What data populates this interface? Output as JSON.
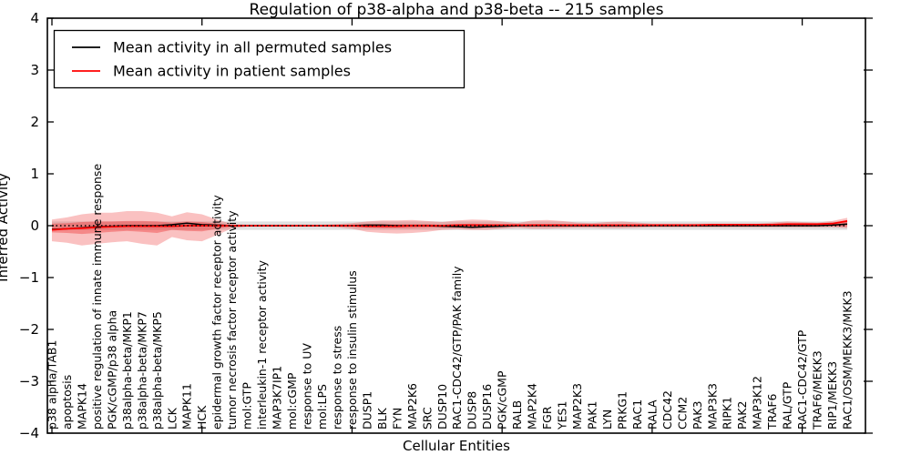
{
  "chart_data": {
    "type": "line",
    "title": "Regulation of p38-alpha and p38-beta -- 215 samples",
    "xlabel": "Cellular Entities",
    "ylabel": "Inferred Activity",
    "ylim": [
      -4,
      4
    ],
    "grid": false,
    "legend_position": "upper left",
    "zero_line": {
      "style": "dotted",
      "color": "#000000",
      "y": 0
    },
    "ytick_values": [
      4,
      3,
      2,
      1,
      0,
      -1,
      -2,
      -3,
      -4
    ],
    "ytick_labels": [
      "4",
      "3",
      "2",
      "1",
      "0",
      "−1",
      "−2",
      "−3",
      "−4"
    ],
    "xtick_positions": [
      0,
      10,
      20,
      30,
      40,
      50
    ],
    "categories": [
      "p38 alpha/TAB1",
      "apoptosis",
      "MAPK14",
      "positive regulation of innate immune response",
      "PGK/cGMP/p38 alpha",
      "p38alpha-beta/MKP1",
      "p38alpha-beta/MKP7",
      "p38alpha-beta/MKP5",
      "LCK",
      "MAPK11",
      "HCK",
      "epidermal growth factor receptor activity",
      "tumor necrosis factor receptor activity",
      "mol:GTP",
      "interleukin-1 receptor activity",
      "MAP3K7IP1",
      "mol:cGMP",
      "response to UV",
      "mol:LPS",
      "response to stress",
      "response to insulin stimulus",
      "DUSP1",
      "BLK",
      "FYN",
      "MAP2K6",
      "SRC",
      "DUSP10",
      "RAC1-CDC42/GTP/PAK family",
      "DUSP8",
      "DUSP16",
      "PGK/cGMP",
      "RALB",
      "MAP2K4",
      "FGR",
      "YES1",
      "MAP2K3",
      "PAK1",
      "LYN",
      "PRKG1",
      "RAC1",
      "RALA",
      "CDC42",
      "CCM2",
      "PAK3",
      "MAP3K3",
      "RIPK1",
      "PAK2",
      "MAP3K12",
      "TRAF6",
      "RAL/GTP",
      "RAC1-CDC42/GTP",
      "TRAF6/MEKK3",
      "RIP1/MEKK3",
      "RAC1/OSM/MEKK3/MKK3"
    ],
    "series": [
      {
        "name": "Mean activity in all permuted samples",
        "color": "#000000",
        "values": [
          -0.07,
          -0.06,
          -0.04,
          -0.02,
          -0.01,
          0,
          0,
          0,
          0.02,
          0.05,
          0.02,
          0.01,
          0,
          0,
          0,
          0,
          0,
          0,
          0,
          0,
          0,
          0.01,
          0.01,
          0,
          0,
          0,
          -0.01,
          -0.02,
          -0.03,
          -0.02,
          -0.01,
          0,
          0,
          0,
          0,
          0,
          0,
          0,
          0,
          0,
          0,
          0,
          0,
          0,
          0,
          0,
          0,
          0,
          0,
          0,
          0,
          0,
          0.01,
          0.03
        ]
      },
      {
        "name": "Mean activity in patient samples",
        "color": "#ff0000",
        "values": [
          -0.08,
          -0.06,
          -0.05,
          -0.03,
          -0.02,
          -0.01,
          -0.01,
          -0.01,
          -0.01,
          0,
          0,
          0,
          0,
          0,
          0,
          0,
          0,
          0,
          0,
          0,
          0,
          -0.01,
          -0.01,
          -0.01,
          0,
          0,
          0,
          0.01,
          0.01,
          0.01,
          0.01,
          0.01,
          0.01,
          0.01,
          0.01,
          0.01,
          0.01,
          0.01,
          0.01,
          0.01,
          0.01,
          0.01,
          0.01,
          0.01,
          0.02,
          0.02,
          0.02,
          0.02,
          0.02,
          0.03,
          0.03,
          0.03,
          0.04,
          0.09
        ]
      }
    ],
    "bands": [
      {
        "name": "permuted-samples-std",
        "color": "#bbbbbb",
        "opacity": 0.45,
        "upper": 0.08,
        "lower": -0.08
      },
      {
        "name": "patient-samples-outer",
        "color": "#ee3333",
        "opacity": 0.3,
        "upper": [
          0.12,
          0.16,
          0.22,
          0.25,
          0.25,
          0.28,
          0.28,
          0.25,
          0.18,
          0.26,
          0.22,
          0.12,
          0.03,
          0.02,
          0.02,
          0.02,
          0.02,
          0.02,
          0.02,
          0.03,
          0.05,
          0.08,
          0.1,
          0.1,
          0.11,
          0.09,
          0.07,
          0.1,
          0.12,
          0.11,
          0.08,
          0.05,
          0.1,
          0.11,
          0.09,
          0.06,
          0.05,
          0.07,
          0.08,
          0.06,
          0.04,
          0.04,
          0.04,
          0.04,
          0.04,
          0.04,
          0.04,
          0.04,
          0.06,
          0.08,
          0.07,
          0.06,
          0.09,
          0.15
        ],
        "lower": [
          -0.3,
          -0.33,
          -0.38,
          -0.35,
          -0.32,
          -0.3,
          -0.35,
          -0.38,
          -0.22,
          -0.28,
          -0.3,
          -0.18,
          -0.05,
          -0.02,
          -0.02,
          -0.02,
          -0.02,
          -0.02,
          -0.02,
          -0.03,
          -0.06,
          -0.12,
          -0.14,
          -0.15,
          -0.14,
          -0.12,
          -0.08,
          -0.07,
          -0.08,
          -0.08,
          -0.06,
          -0.04,
          -0.06,
          -0.06,
          -0.05,
          -0.04,
          -0.04,
          -0.05,
          -0.05,
          -0.04,
          -0.03,
          -0.03,
          -0.03,
          -0.03,
          -0.03,
          -0.03,
          -0.03,
          -0.03,
          -0.03,
          -0.03,
          -0.03,
          -0.03,
          -0.03,
          -0.05
        ]
      },
      {
        "name": "patient-samples-inner",
        "color": "#ee3333",
        "opacity": 0.4,
        "upper": [
          0.04,
          0.05,
          0.07,
          0.08,
          0.08,
          0.09,
          0.09,
          0.08,
          0.06,
          0.08,
          0.07,
          0.04,
          0.01,
          0.01,
          0.01,
          0.01,
          0.01,
          0.01,
          0.01,
          0.01,
          0.02,
          0.03,
          0.03,
          0.03,
          0.03,
          0.03,
          0.02,
          0.03,
          0.04,
          0.03,
          0.02,
          0.02,
          0.03,
          0.03,
          0.03,
          0.02,
          0.02,
          0.02,
          0.02,
          0.02,
          0.01,
          0.01,
          0.01,
          0.01,
          0.01,
          0.01,
          0.01,
          0.01,
          0.02,
          0.03,
          0.03,
          0.02,
          0.04,
          0.11
        ],
        "lower": [
          -0.13,
          -0.14,
          -0.16,
          -0.14,
          -0.12,
          -0.1,
          -0.12,
          -0.14,
          -0.08,
          -0.1,
          -0.11,
          -0.06,
          -0.02,
          -0.01,
          -0.01,
          -0.01,
          -0.01,
          -0.01,
          -0.01,
          -0.01,
          -0.02,
          -0.04,
          -0.05,
          -0.05,
          -0.05,
          -0.04,
          -0.03,
          -0.03,
          -0.03,
          -0.03,
          -0.02,
          -0.02,
          -0.02,
          -0.02,
          -0.02,
          -0.02,
          -0.02,
          -0.02,
          -0.02,
          -0.02,
          -0.01,
          -0.01,
          -0.01,
          -0.01,
          -0.01,
          -0.01,
          -0.01,
          -0.01,
          -0.01,
          -0.01,
          -0.01,
          -0.01,
          -0.01,
          -0.02
        ]
      }
    ]
  }
}
